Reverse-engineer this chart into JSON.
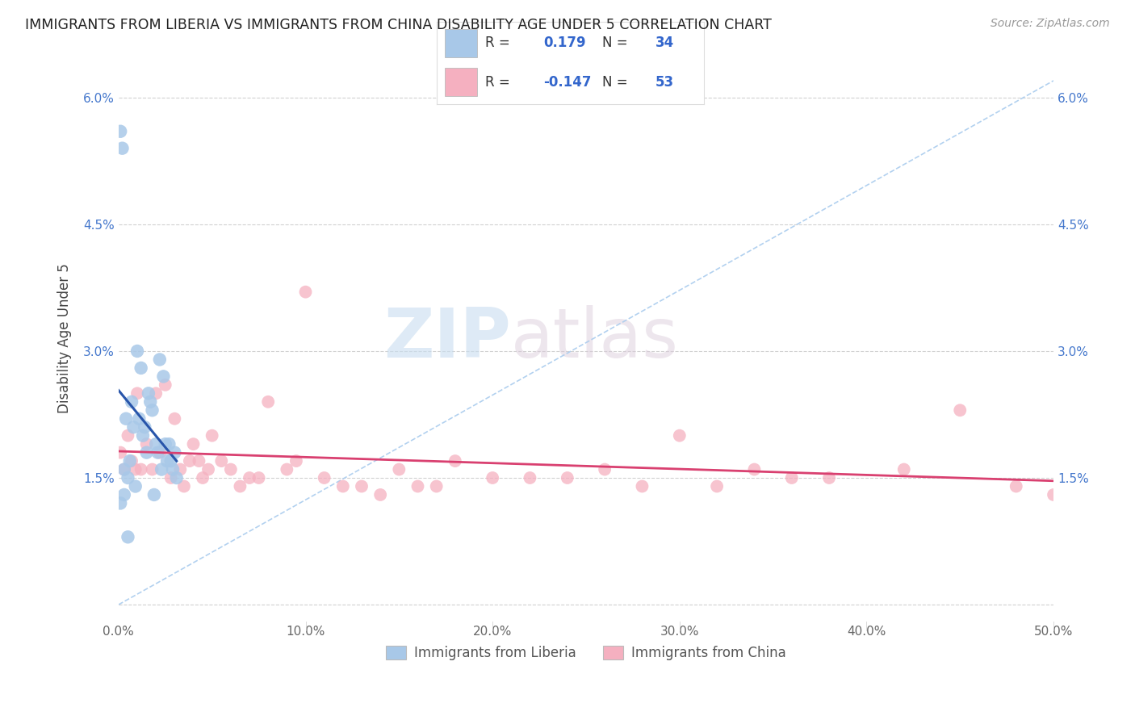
{
  "title": "IMMIGRANTS FROM LIBERIA VS IMMIGRANTS FROM CHINA DISABILITY AGE UNDER 5 CORRELATION CHART",
  "source": "Source: ZipAtlas.com",
  "ylabel": "Disability Age Under 5",
  "xlim": [
    0.0,
    0.5
  ],
  "ylim": [
    -0.002,
    0.065
  ],
  "xticks": [
    0.0,
    0.1,
    0.2,
    0.3,
    0.4,
    0.5
  ],
  "xticklabels": [
    "0.0%",
    "10.0%",
    "20.0%",
    "30.0%",
    "40.0%",
    "50.0%"
  ],
  "yticks": [
    0.0,
    0.015,
    0.03,
    0.045,
    0.06
  ],
  "yticklabels": [
    "",
    "1.5%",
    "3.0%",
    "4.5%",
    "6.0%"
  ],
  "legend_liberia_label": "Immigrants from Liberia",
  "legend_china_label": "Immigrants from China",
  "r_liberia": "0.179",
  "n_liberia": "34",
  "r_china": "-0.147",
  "n_china": "53",
  "liberia_color": "#a8c8e8",
  "china_color": "#f5b0c0",
  "liberia_line_color": "#2855aa",
  "china_line_color": "#d94070",
  "diag_line_color": "#aaccee",
  "background_color": "#ffffff",
  "grid_color": "#cccccc",
  "watermark_zip": "ZIP",
  "watermark_atlas": "atlas",
  "liberia_x": [
    0.001,
    0.002,
    0.003,
    0.004,
    0.005,
    0.006,
    0.007,
    0.008,
    0.009,
    0.01,
    0.011,
    0.012,
    0.013,
    0.014,
    0.015,
    0.016,
    0.017,
    0.018,
    0.019,
    0.02,
    0.021,
    0.022,
    0.023,
    0.024,
    0.025,
    0.026,
    0.027,
    0.028,
    0.029,
    0.03,
    0.031,
    0.001,
    0.003,
    0.005
  ],
  "liberia_y": [
    0.056,
    0.054,
    0.016,
    0.022,
    0.015,
    0.017,
    0.024,
    0.021,
    0.014,
    0.03,
    0.022,
    0.028,
    0.02,
    0.021,
    0.018,
    0.025,
    0.024,
    0.023,
    0.013,
    0.019,
    0.018,
    0.029,
    0.016,
    0.027,
    0.019,
    0.017,
    0.019,
    0.017,
    0.016,
    0.018,
    0.015,
    0.012,
    0.013,
    0.008
  ],
  "china_x": [
    0.001,
    0.003,
    0.005,
    0.007,
    0.009,
    0.01,
    0.012,
    0.015,
    0.018,
    0.02,
    0.022,
    0.025,
    0.028,
    0.03,
    0.033,
    0.035,
    0.038,
    0.04,
    0.043,
    0.045,
    0.048,
    0.05,
    0.055,
    0.06,
    0.065,
    0.07,
    0.075,
    0.08,
    0.09,
    0.095,
    0.1,
    0.11,
    0.12,
    0.13,
    0.14,
    0.15,
    0.16,
    0.17,
    0.18,
    0.2,
    0.22,
    0.24,
    0.26,
    0.28,
    0.3,
    0.32,
    0.34,
    0.36,
    0.38,
    0.42,
    0.45,
    0.48,
    0.5
  ],
  "china_y": [
    0.018,
    0.016,
    0.02,
    0.017,
    0.016,
    0.025,
    0.016,
    0.019,
    0.016,
    0.025,
    0.018,
    0.026,
    0.015,
    0.022,
    0.016,
    0.014,
    0.017,
    0.019,
    0.017,
    0.015,
    0.016,
    0.02,
    0.017,
    0.016,
    0.014,
    0.015,
    0.015,
    0.024,
    0.016,
    0.017,
    0.037,
    0.015,
    0.014,
    0.014,
    0.013,
    0.016,
    0.014,
    0.014,
    0.017,
    0.015,
    0.015,
    0.015,
    0.016,
    0.014,
    0.02,
    0.014,
    0.016,
    0.015,
    0.015,
    0.016,
    0.023,
    0.014,
    0.013
  ]
}
